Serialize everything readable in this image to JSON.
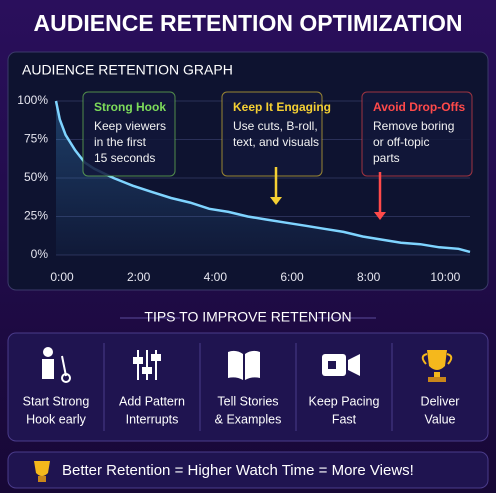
{
  "header": {
    "title": "AUDIENCE RETENTION OPTIMIZATION"
  },
  "chart_data": {
    "type": "line",
    "title": "AUDIENCE RETENTION GRAPH",
    "x": [
      0,
      0.1,
      0.25,
      0.5,
      0.75,
      1,
      1.5,
      2,
      2.5,
      3,
      3.5,
      4,
      4.5,
      5,
      5.5,
      6,
      6.5,
      7,
      7.5,
      8,
      8.5,
      9,
      9.5,
      10,
      10.5,
      10.8
    ],
    "values": [
      100,
      88,
      78,
      68,
      60,
      56,
      50,
      45,
      41,
      37,
      34,
      30,
      28,
      25,
      23,
      21,
      19,
      17,
      15,
      12,
      10,
      8,
      7,
      5,
      4,
      2
    ],
    "color": "#7fd4ff",
    "xlim": [
      0,
      10.8
    ],
    "xticks": [
      {
        "value": 0,
        "label": "0:00"
      },
      {
        "value": 2,
        "label": "2:00"
      },
      {
        "value": 4,
        "label": "4:00"
      },
      {
        "value": 6,
        "label": "6:00"
      },
      {
        "value": 8,
        "label": "8:00"
      },
      {
        "value": 10,
        "label": "10:00"
      }
    ],
    "ylim": [
      0,
      100
    ],
    "yticks": [
      {
        "value": 0,
        "label": "0%"
      },
      {
        "value": 25,
        "label": "25%"
      },
      {
        "value": 50,
        "label": "50%"
      },
      {
        "value": 75,
        "label": "75%"
      },
      {
        "value": 100,
        "label": "100%"
      }
    ],
    "grid": true,
    "annotations": [
      {
        "title": "Strong Hook",
        "color": "#7ddc5a",
        "lines": [
          "Keep viewers",
          "in the first",
          "15 seconds"
        ]
      },
      {
        "title": "Keep It Engaging",
        "color": "#f5d033",
        "lines": [
          "Use cuts, B-roll,",
          "text, and visuals"
        ]
      },
      {
        "title": "Avoid Drop-Offs",
        "color": "#ff4a4a",
        "lines": [
          "Remove boring",
          "or off-topic",
          "parts"
        ]
      }
    ]
  },
  "tips": {
    "title": "TIPS TO IMPROVE RETENTION",
    "items": [
      [
        "Start Strong",
        "Hook early"
      ],
      [
        "Add Pattern",
        "Interrupts"
      ],
      [
        "Tell Stories",
        "& Examples"
      ],
      [
        "Keep Pacing",
        "Fast"
      ],
      [
        "Deliver",
        "Value"
      ]
    ]
  },
  "footer": {
    "text": "Better Retention = Higher Watch Time = More Views!"
  }
}
